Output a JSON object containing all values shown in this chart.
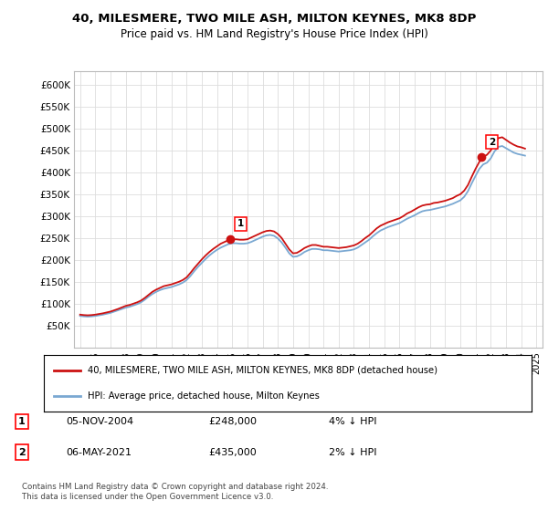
{
  "title": "40, MILESMERE, TWO MILE ASH, MILTON KEYNES, MK8 8DP",
  "subtitle": "Price paid vs. HM Land Registry's House Price Index (HPI)",
  "ylim": [
    0,
    630000
  ],
  "yticks": [
    50000,
    100000,
    150000,
    200000,
    250000,
    300000,
    350000,
    400000,
    450000,
    500000,
    550000,
    600000
  ],
  "ytick_labels": [
    "£50K",
    "£100K",
    "£150K",
    "£200K",
    "£250K",
    "£300K",
    "£350K",
    "£400K",
    "£450K",
    "£500K",
    "£550K",
    "£600K"
  ],
  "hpi_color": "#7aa8d2",
  "price_color": "#cc1111",
  "marker_color": "#cc1111",
  "grid_color": "#dddddd",
  "purchase1_year": 2004.85,
  "purchase1_price": 248000,
  "purchase1_label": "1",
  "purchase2_year": 2021.35,
  "purchase2_price": 435000,
  "purchase2_label": "2",
  "legend_entry1": "40, MILESMERE, TWO MILE ASH, MILTON KEYNES, MK8 8DP (detached house)",
  "legend_entry2": "HPI: Average price, detached house, Milton Keynes",
  "annotation1_date": "05-NOV-2004",
  "annotation1_price": "£248,000",
  "annotation1_hpi": "4% ↓ HPI",
  "annotation2_date": "06-MAY-2021",
  "annotation2_price": "£435,000",
  "annotation2_hpi": "2% ↓ HPI",
  "footer": "Contains HM Land Registry data © Crown copyright and database right 2024.\nThis data is licensed under the Open Government Licence v3.0.",
  "hpi_data_years": [
    1995.0,
    1995.25,
    1995.5,
    1995.75,
    1996.0,
    1996.25,
    1996.5,
    1996.75,
    1997.0,
    1997.25,
    1997.5,
    1997.75,
    1998.0,
    1998.25,
    1998.5,
    1998.75,
    1999.0,
    1999.25,
    1999.5,
    1999.75,
    2000.0,
    2000.25,
    2000.5,
    2000.75,
    2001.0,
    2001.25,
    2001.5,
    2001.75,
    2002.0,
    2002.25,
    2002.5,
    2002.75,
    2003.0,
    2003.25,
    2003.5,
    2003.75,
    2004.0,
    2004.25,
    2004.5,
    2004.75,
    2005.0,
    2005.25,
    2005.5,
    2005.75,
    2006.0,
    2006.25,
    2006.5,
    2006.75,
    2007.0,
    2007.25,
    2007.5,
    2007.75,
    2008.0,
    2008.25,
    2008.5,
    2008.75,
    2009.0,
    2009.25,
    2009.5,
    2009.75,
    2010.0,
    2010.25,
    2010.5,
    2010.75,
    2011.0,
    2011.25,
    2011.5,
    2011.75,
    2012.0,
    2012.25,
    2012.5,
    2012.75,
    2013.0,
    2013.25,
    2013.5,
    2013.75,
    2014.0,
    2014.25,
    2014.5,
    2014.75,
    2015.0,
    2015.25,
    2015.5,
    2015.75,
    2016.0,
    2016.25,
    2016.5,
    2016.75,
    2017.0,
    2017.25,
    2017.5,
    2017.75,
    2018.0,
    2018.25,
    2018.5,
    2018.75,
    2019.0,
    2019.25,
    2019.5,
    2019.75,
    2020.0,
    2020.25,
    2020.5,
    2020.75,
    2021.0,
    2021.25,
    2021.5,
    2021.75,
    2022.0,
    2022.25,
    2022.5,
    2022.75,
    2023.0,
    2023.25,
    2023.5,
    2023.75,
    2024.0,
    2024.25
  ],
  "hpi_data_values": [
    72000,
    71000,
    70500,
    71000,
    72000,
    73500,
    75000,
    77000,
    79000,
    82000,
    85000,
    88000,
    91000,
    93000,
    96000,
    99000,
    103000,
    109000,
    116000,
    122000,
    127000,
    131000,
    134000,
    136000,
    138000,
    141000,
    144000,
    148000,
    154000,
    163000,
    174000,
    184000,
    193000,
    202000,
    210000,
    217000,
    223000,
    228000,
    232000,
    236000,
    238000,
    238000,
    237000,
    237000,
    238000,
    241000,
    245000,
    249000,
    253000,
    256000,
    257000,
    255000,
    249000,
    240000,
    228000,
    215000,
    207000,
    208000,
    212000,
    218000,
    222000,
    225000,
    225000,
    224000,
    222000,
    222000,
    221000,
    220000,
    219000,
    220000,
    221000,
    222000,
    224000,
    228000,
    234000,
    240000,
    246000,
    254000,
    261000,
    267000,
    271000,
    275000,
    278000,
    281000,
    284000,
    289000,
    294000,
    298000,
    302000,
    307000,
    311000,
    313000,
    314000,
    316000,
    318000,
    320000,
    322000,
    325000,
    328000,
    332000,
    336000,
    344000,
    357000,
    375000,
    392000,
    408000,
    418000,
    422000,
    432000,
    448000,
    458000,
    460000,
    455000,
    450000,
    445000,
    442000,
    440000,
    438000
  ],
  "price_data_years": [
    1995.0,
    1995.25,
    1995.5,
    1995.75,
    1996.0,
    1996.25,
    1996.5,
    1996.75,
    1997.0,
    1997.25,
    1997.5,
    1997.75,
    1998.0,
    1998.25,
    1998.5,
    1998.75,
    1999.0,
    1999.25,
    1999.5,
    1999.75,
    2000.0,
    2000.25,
    2000.5,
    2000.75,
    2001.0,
    2001.25,
    2001.5,
    2001.75,
    2002.0,
    2002.25,
    2002.5,
    2002.75,
    2003.0,
    2003.25,
    2003.5,
    2003.75,
    2004.0,
    2004.25,
    2004.5,
    2004.75,
    2005.0,
    2005.25,
    2005.5,
    2005.75,
    2006.0,
    2006.25,
    2006.5,
    2006.75,
    2007.0,
    2007.25,
    2007.5,
    2007.75,
    2008.0,
    2008.25,
    2008.5,
    2008.75,
    2009.0,
    2009.25,
    2009.5,
    2009.75,
    2010.0,
    2010.25,
    2010.5,
    2010.75,
    2011.0,
    2011.25,
    2011.5,
    2011.75,
    2012.0,
    2012.25,
    2012.5,
    2012.75,
    2013.0,
    2013.25,
    2013.5,
    2013.75,
    2014.0,
    2014.25,
    2014.5,
    2014.75,
    2015.0,
    2015.25,
    2015.5,
    2015.75,
    2016.0,
    2016.25,
    2016.5,
    2016.75,
    2017.0,
    2017.25,
    2017.5,
    2017.75,
    2018.0,
    2018.25,
    2018.5,
    2018.75,
    2019.0,
    2019.25,
    2019.5,
    2019.75,
    2020.0,
    2020.25,
    2020.5,
    2020.75,
    2021.0,
    2021.25,
    2021.5,
    2021.75,
    2022.0,
    2022.25,
    2022.5,
    2022.75,
    2023.0,
    2023.25,
    2023.5,
    2023.75,
    2024.0,
    2024.25
  ],
  "price_data_values": [
    75000,
    74000,
    73500,
    74000,
    75000,
    76500,
    78000,
    80000,
    82000,
    85000,
    88000,
    91500,
    95000,
    97000,
    100000,
    103000,
    107000,
    113000,
    120000,
    127000,
    132000,
    136000,
    140000,
    142000,
    144000,
    147000,
    150000,
    154000,
    160000,
    170000,
    181000,
    191000,
    201000,
    210000,
    218000,
    225000,
    231000,
    237000,
    241000,
    245000,
    247000,
    247000,
    246000,
    246000,
    247000,
    251000,
    255000,
    259000,
    263000,
    266000,
    267000,
    265000,
    259000,
    250000,
    237000,
    224000,
    215000,
    216000,
    221000,
    227000,
    231000,
    234000,
    234000,
    232000,
    230000,
    230000,
    229000,
    228000,
    227000,
    228000,
    229000,
    231000,
    233000,
    237000,
    243000,
    250000,
    256000,
    264000,
    272000,
    278000,
    282000,
    286000,
    289000,
    292000,
    295000,
    300000,
    306000,
    310000,
    315000,
    320000,
    324000,
    326000,
    327000,
    330000,
    331000,
    333000,
    335000,
    338000,
    341000,
    346000,
    350000,
    358000,
    371000,
    390000,
    408000,
    424000,
    435000,
    440000,
    450000,
    467000,
    478000,
    480000,
    474000,
    468000,
    463000,
    459000,
    457000,
    454000
  ]
}
